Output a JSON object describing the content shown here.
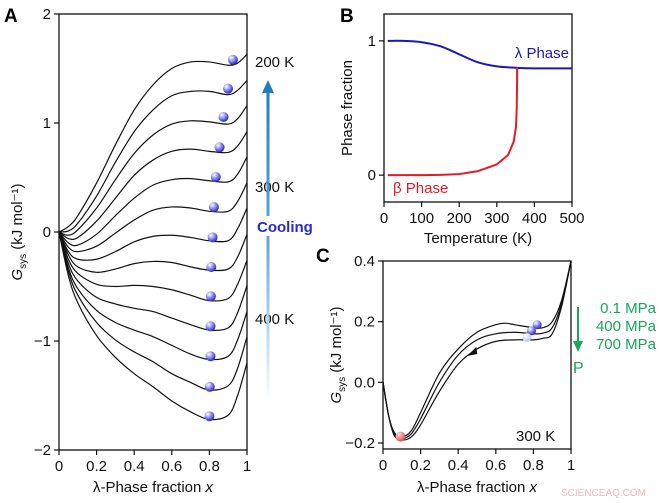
{
  "panel_labels": [
    "A",
    "B",
    "C"
  ],
  "chart_data": [
    {
      "panel": "A",
      "type": "line",
      "xlabel": "λ-Phase fraction",
      "xlabel_var": "x",
      "ylabel_main": "G",
      "ylabel_sub": "sys",
      "ylabel_unit": "(kJ mol⁻¹)",
      "xlim": [
        0,
        1
      ],
      "ylim": [
        -2,
        2
      ],
      "xticks": [
        0,
        0.2,
        0.4,
        0.6,
        0.8,
        1
      ],
      "xtick_labels": [
        "0",
        "0.2",
        "0.4",
        "0.6",
        "0.8",
        "1"
      ],
      "yticks": [
        -2,
        -1,
        0,
        1,
        2
      ],
      "ytick_labels": [
        "−2",
        "−1",
        "0",
        "1",
        "2"
      ],
      "x": [
        0,
        0.05,
        0.1,
        0.2,
        0.3,
        0.4,
        0.5,
        0.6,
        0.7,
        0.8,
        0.9,
        0.95,
        1
      ],
      "curves": [
        [
          0,
          0.05,
          0.15,
          0.45,
          0.8,
          1.12,
          1.35,
          1.5,
          1.56,
          1.56,
          1.53,
          1.55,
          1.63
        ],
        [
          0,
          0.01,
          0.08,
          0.33,
          0.64,
          0.92,
          1.12,
          1.25,
          1.29,
          1.29,
          1.26,
          1.3,
          1.39
        ],
        [
          0,
          -0.03,
          0.02,
          0.22,
          0.48,
          0.72,
          0.89,
          0.99,
          1.02,
          1.01,
          0.99,
          1.04,
          1.16
        ],
        [
          0,
          -0.06,
          -0.05,
          0.1,
          0.31,
          0.52,
          0.66,
          0.74,
          0.76,
          0.74,
          0.73,
          0.79,
          0.92
        ],
        [
          0,
          -0.1,
          -0.12,
          -0.02,
          0.15,
          0.31,
          0.43,
          0.48,
          0.49,
          0.47,
          0.46,
          0.53,
          0.69
        ],
        [
          0,
          -0.14,
          -0.18,
          -0.13,
          -0.01,
          0.11,
          0.2,
          0.23,
          0.22,
          0.19,
          0.19,
          0.28,
          0.45
        ],
        [
          0,
          -0.18,
          -0.25,
          -0.25,
          -0.18,
          -0.09,
          -0.04,
          -0.03,
          -0.05,
          -0.08,
          -0.08,
          0.03,
          0.22
        ],
        [
          0,
          -0.21,
          -0.32,
          -0.37,
          -0.34,
          -0.29,
          -0.27,
          -0.28,
          -0.32,
          -0.35,
          -0.34,
          -0.23,
          -0.02
        ],
        [
          0,
          -0.25,
          -0.38,
          -0.48,
          -0.5,
          -0.49,
          -0.5,
          -0.53,
          -0.58,
          -0.63,
          -0.61,
          -0.48,
          -0.26
        ],
        [
          0,
          -0.29,
          -0.45,
          -0.6,
          -0.66,
          -0.7,
          -0.73,
          -0.79,
          -0.85,
          -0.9,
          -0.88,
          -0.74,
          -0.49
        ],
        [
          0,
          -0.33,
          -0.52,
          -0.72,
          -0.83,
          -0.9,
          -0.96,
          -1.04,
          -1.12,
          -1.17,
          -1.14,
          -0.99,
          -0.73
        ],
        [
          0,
          -0.36,
          -0.58,
          -0.83,
          -0.99,
          -1.1,
          -1.19,
          -1.3,
          -1.38,
          -1.45,
          -1.41,
          -1.25,
          -0.96
        ],
        [
          0,
          -0.4,
          -0.65,
          -0.95,
          -1.15,
          -1.3,
          -1.42,
          -1.55,
          -1.65,
          -1.72,
          -1.68,
          -1.5,
          -1.2
        ]
      ],
      "balls": [
        [
          0.925,
          1.58
        ],
        [
          0.899,
          1.315
        ],
        [
          0.875,
          1.055
        ],
        [
          0.854,
          0.777
        ],
        [
          0.834,
          0.505
        ],
        [
          0.824,
          0.229
        ],
        [
          0.817,
          -0.049
        ],
        [
          0.81,
          -0.321
        ],
        [
          0.808,
          -0.59
        ],
        [
          0.806,
          -0.865
        ],
        [
          0.806,
          -1.14
        ],
        [
          0.802,
          -1.42
        ],
        [
          0.8,
          -1.69
        ]
      ],
      "temperature_labels": [
        "200 K",
        "300 K",
        "400 K"
      ],
      "cooling_label": "Cooling",
      "colors": {
        "curve": "#111111",
        "ball": "#3a3ad8",
        "cooling_text": "#2a2ad0",
        "arrow": "#1f7fc0"
      }
    },
    {
      "panel": "B",
      "type": "line",
      "xlabel": "Temperature (K)",
      "ylabel": "Phase fraction",
      "xlim": [
        0,
        500
      ],
      "ylim": [
        -0.2,
        1.2
      ],
      "xticks": [
        0,
        100,
        200,
        300,
        400,
        500
      ],
      "xtick_labels": [
        "0",
        "100",
        "200",
        "300",
        "400",
        "500"
      ],
      "yticks": [
        0,
        1
      ],
      "ytick_labels": [
        "0",
        "1"
      ],
      "series": [
        {
          "name": "λ Phase",
          "color": "#1a1ab8",
          "x": [
            10,
            50,
            100,
            150,
            200,
            250,
            300,
            350,
            400,
            500
          ],
          "y": [
            1,
            1,
            0.99,
            0.96,
            0.9,
            0.84,
            0.81,
            0.8,
            0.795,
            0.795
          ]
        },
        {
          "name": "β Phase",
          "color": "#e01c24",
          "x": [
            10,
            100,
            150,
            200,
            250,
            300,
            330,
            345,
            351,
            353,
            354,
            354
          ],
          "y": [
            0,
            0,
            0.002,
            0.008,
            0.03,
            0.08,
            0.15,
            0.25,
            0.36,
            0.5,
            0.7,
            0.8
          ]
        }
      ]
    },
    {
      "panel": "C",
      "type": "line",
      "xlabel": "λ-Phase fraction",
      "xlabel_var": "x",
      "ylabel_main": "G",
      "ylabel_sub": "sys",
      "ylabel_unit": "(kJ mol⁻¹)",
      "xlim": [
        0,
        1
      ],
      "ylim": [
        -0.22,
        0.4
      ],
      "xticks": [
        0,
        0.2,
        0.4,
        0.6,
        0.8,
        1
      ],
      "xtick_labels": [
        "0",
        "0.2",
        "0.4",
        "0.6",
        "0.8",
        "1"
      ],
      "yticks": [
        -0.2,
        0,
        0.2,
        0.4
      ],
      "ytick_labels": [
        "−0.2",
        "0.0",
        "0.2",
        "0.4"
      ],
      "series": [
        {
          "name": "0.1 MPa",
          "x": [
            0,
            0.03,
            0.06,
            0.1,
            0.15,
            0.2,
            0.3,
            0.4,
            0.5,
            0.6,
            0.65,
            0.7,
            0.8,
            0.85,
            0.9,
            0.95,
            1
          ],
          "y": [
            0,
            -0.11,
            -0.165,
            -0.18,
            -0.16,
            -0.1,
            0.03,
            0.11,
            0.165,
            0.19,
            0.195,
            0.19,
            0.18,
            0.18,
            0.2,
            0.27,
            0.4
          ]
        },
        {
          "name": "400 MPa",
          "x": [
            0,
            0.03,
            0.06,
            0.1,
            0.15,
            0.2,
            0.3,
            0.4,
            0.5,
            0.6,
            0.7,
            0.8,
            0.85,
            0.9,
            0.95,
            1
          ],
          "y": [
            0,
            -0.11,
            -0.17,
            -0.185,
            -0.17,
            -0.12,
            0.0,
            0.09,
            0.14,
            0.16,
            0.165,
            0.16,
            0.162,
            0.18,
            0.26,
            0.4
          ]
        },
        {
          "name": "700 MPa",
          "x": [
            0,
            0.03,
            0.06,
            0.1,
            0.15,
            0.2,
            0.3,
            0.4,
            0.5,
            0.6,
            0.7,
            0.8,
            0.85,
            0.9,
            0.95,
            1
          ],
          "y": [
            0,
            -0.11,
            -0.175,
            -0.19,
            -0.18,
            -0.14,
            -0.03,
            0.06,
            0.11,
            0.135,
            0.14,
            0.14,
            0.145,
            0.16,
            0.25,
            0.4
          ]
        }
      ],
      "balls_blue": [
        [
          0.82,
          0.19
        ],
        [
          0.79,
          0.17
        ],
        [
          0.765,
          0.148
        ]
      ],
      "ball_red": [
        0.093,
        -0.179
      ],
      "curve_arrow_at": [
        0.48,
        0.1
      ],
      "temperature_label": "300 K",
      "pressure_labels": [
        "0.1 MPa",
        "400 MPa",
        "700 MPa"
      ],
      "pressure_axis_label": "P",
      "colors": {
        "pressure": "#19a55a",
        "ball_blue": "#3a3ad8",
        "ball_red": "#e06060"
      }
    }
  ],
  "watermark": "SCIENCEAQ.COM"
}
